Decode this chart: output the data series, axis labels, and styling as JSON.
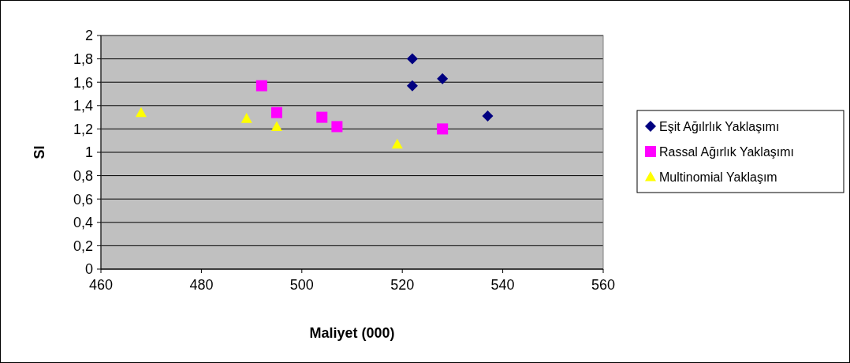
{
  "chart_data": {
    "type": "scatter",
    "xlabel": "Maliyet (000)",
    "ylabel": "SI",
    "xlim": [
      460,
      560
    ],
    "xticks": [
      460,
      480,
      500,
      520,
      540,
      560
    ],
    "ylim": [
      0,
      2
    ],
    "yticks": [
      0,
      {
        "value": 0.2,
        "label": "0,2"
      },
      {
        "value": 0.4,
        "label": "0,4"
      },
      {
        "value": 0.6,
        "label": "0,6"
      },
      {
        "value": 0.8,
        "label": "0,8"
      },
      1,
      {
        "value": 1.2,
        "label": "1,2"
      },
      {
        "value": 1.4,
        "label": "1,4"
      },
      {
        "value": 1.6,
        "label": "1,6"
      },
      {
        "value": 1.8,
        "label": "1,8"
      },
      2
    ],
    "grid": "y",
    "legend": "right",
    "series": [
      {
        "name": "Eşit Ağılrlık Yaklaşımı",
        "color": "#000080",
        "marker": "diamond",
        "x": [
          522,
          522,
          528,
          537
        ],
        "values": [
          1.8,
          1.57,
          1.63,
          1.31
        ]
      },
      {
        "name": "Rassal Ağırlık Yaklaşımı",
        "color": "#ff00ff",
        "marker": "square",
        "x": [
          492,
          495,
          504,
          507,
          528
        ],
        "values": [
          1.57,
          1.34,
          1.3,
          1.22,
          1.2
        ]
      },
      {
        "name": "Multinomial Yaklaşım",
        "color": "#ffff00",
        "marker": "triangle",
        "x": [
          468,
          489,
          495,
          519
        ],
        "values": [
          1.34,
          1.29,
          1.22,
          1.07
        ]
      }
    ]
  }
}
